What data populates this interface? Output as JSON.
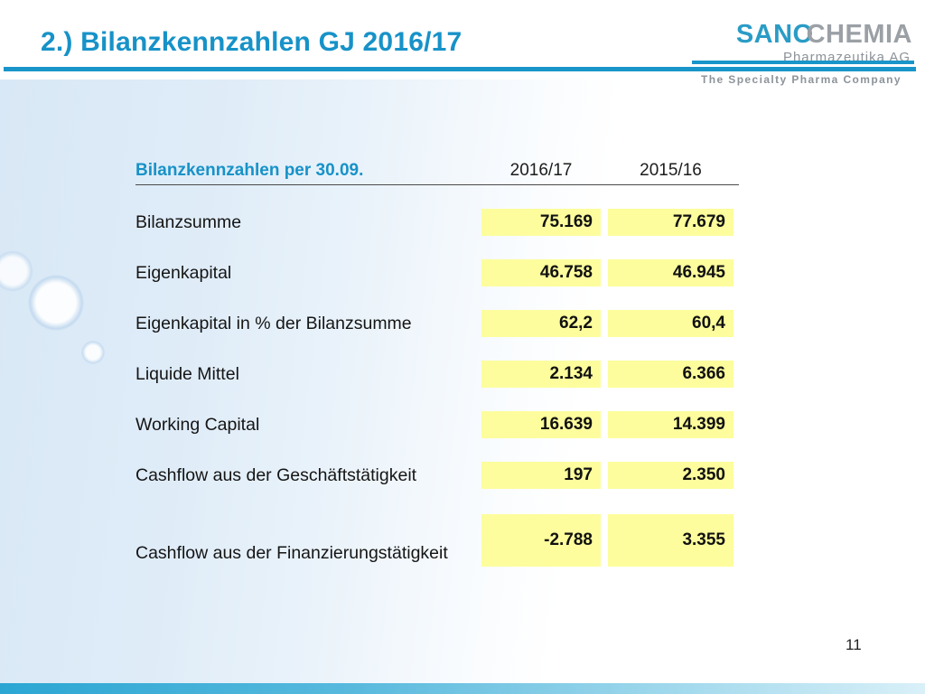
{
  "slide": {
    "title": "2.) Bilanzkennzahlen GJ 2016/17",
    "page_number": "11"
  },
  "logo": {
    "brand_part1": "SANO",
    "brand_part2": "CHEMIA",
    "subtitle": "Pharmazeutika AG",
    "tagline": "The Specialty Pharma Company"
  },
  "table": {
    "header": {
      "label": "Bilanzkennzahlen per 30.09.",
      "col1": "2016/17",
      "col2": "2015/16"
    },
    "rows": [
      {
        "label": "Bilanzsumme",
        "v1": "75.169",
        "v2": "77.679"
      },
      {
        "label": "Eigenkapital",
        "v1": "46.758",
        "v2": "46.945"
      },
      {
        "label": "Eigenkapital in % der Bilanzsumme",
        "v1": "62,2",
        "v2": "60,4"
      },
      {
        "label": "Liquide Mittel",
        "v1": "2.134",
        "v2": "6.366"
      },
      {
        "label": "Working Capital",
        "v1": "16.639",
        "v2": "14.399"
      },
      {
        "label": "Cashflow aus der Geschäftstätigkeit",
        "v1": "197",
        "v2": "2.350"
      },
      {
        "label": "Cashflow aus der Finanzierungstätigkeit",
        "v1": "-2.788",
        "v2": "3.355"
      }
    ]
  },
  "colors": {
    "accent_teal": "#1792c8",
    "highlight_yellow": "#fdfd9d",
    "brand_gray": "#9ba0a6"
  }
}
